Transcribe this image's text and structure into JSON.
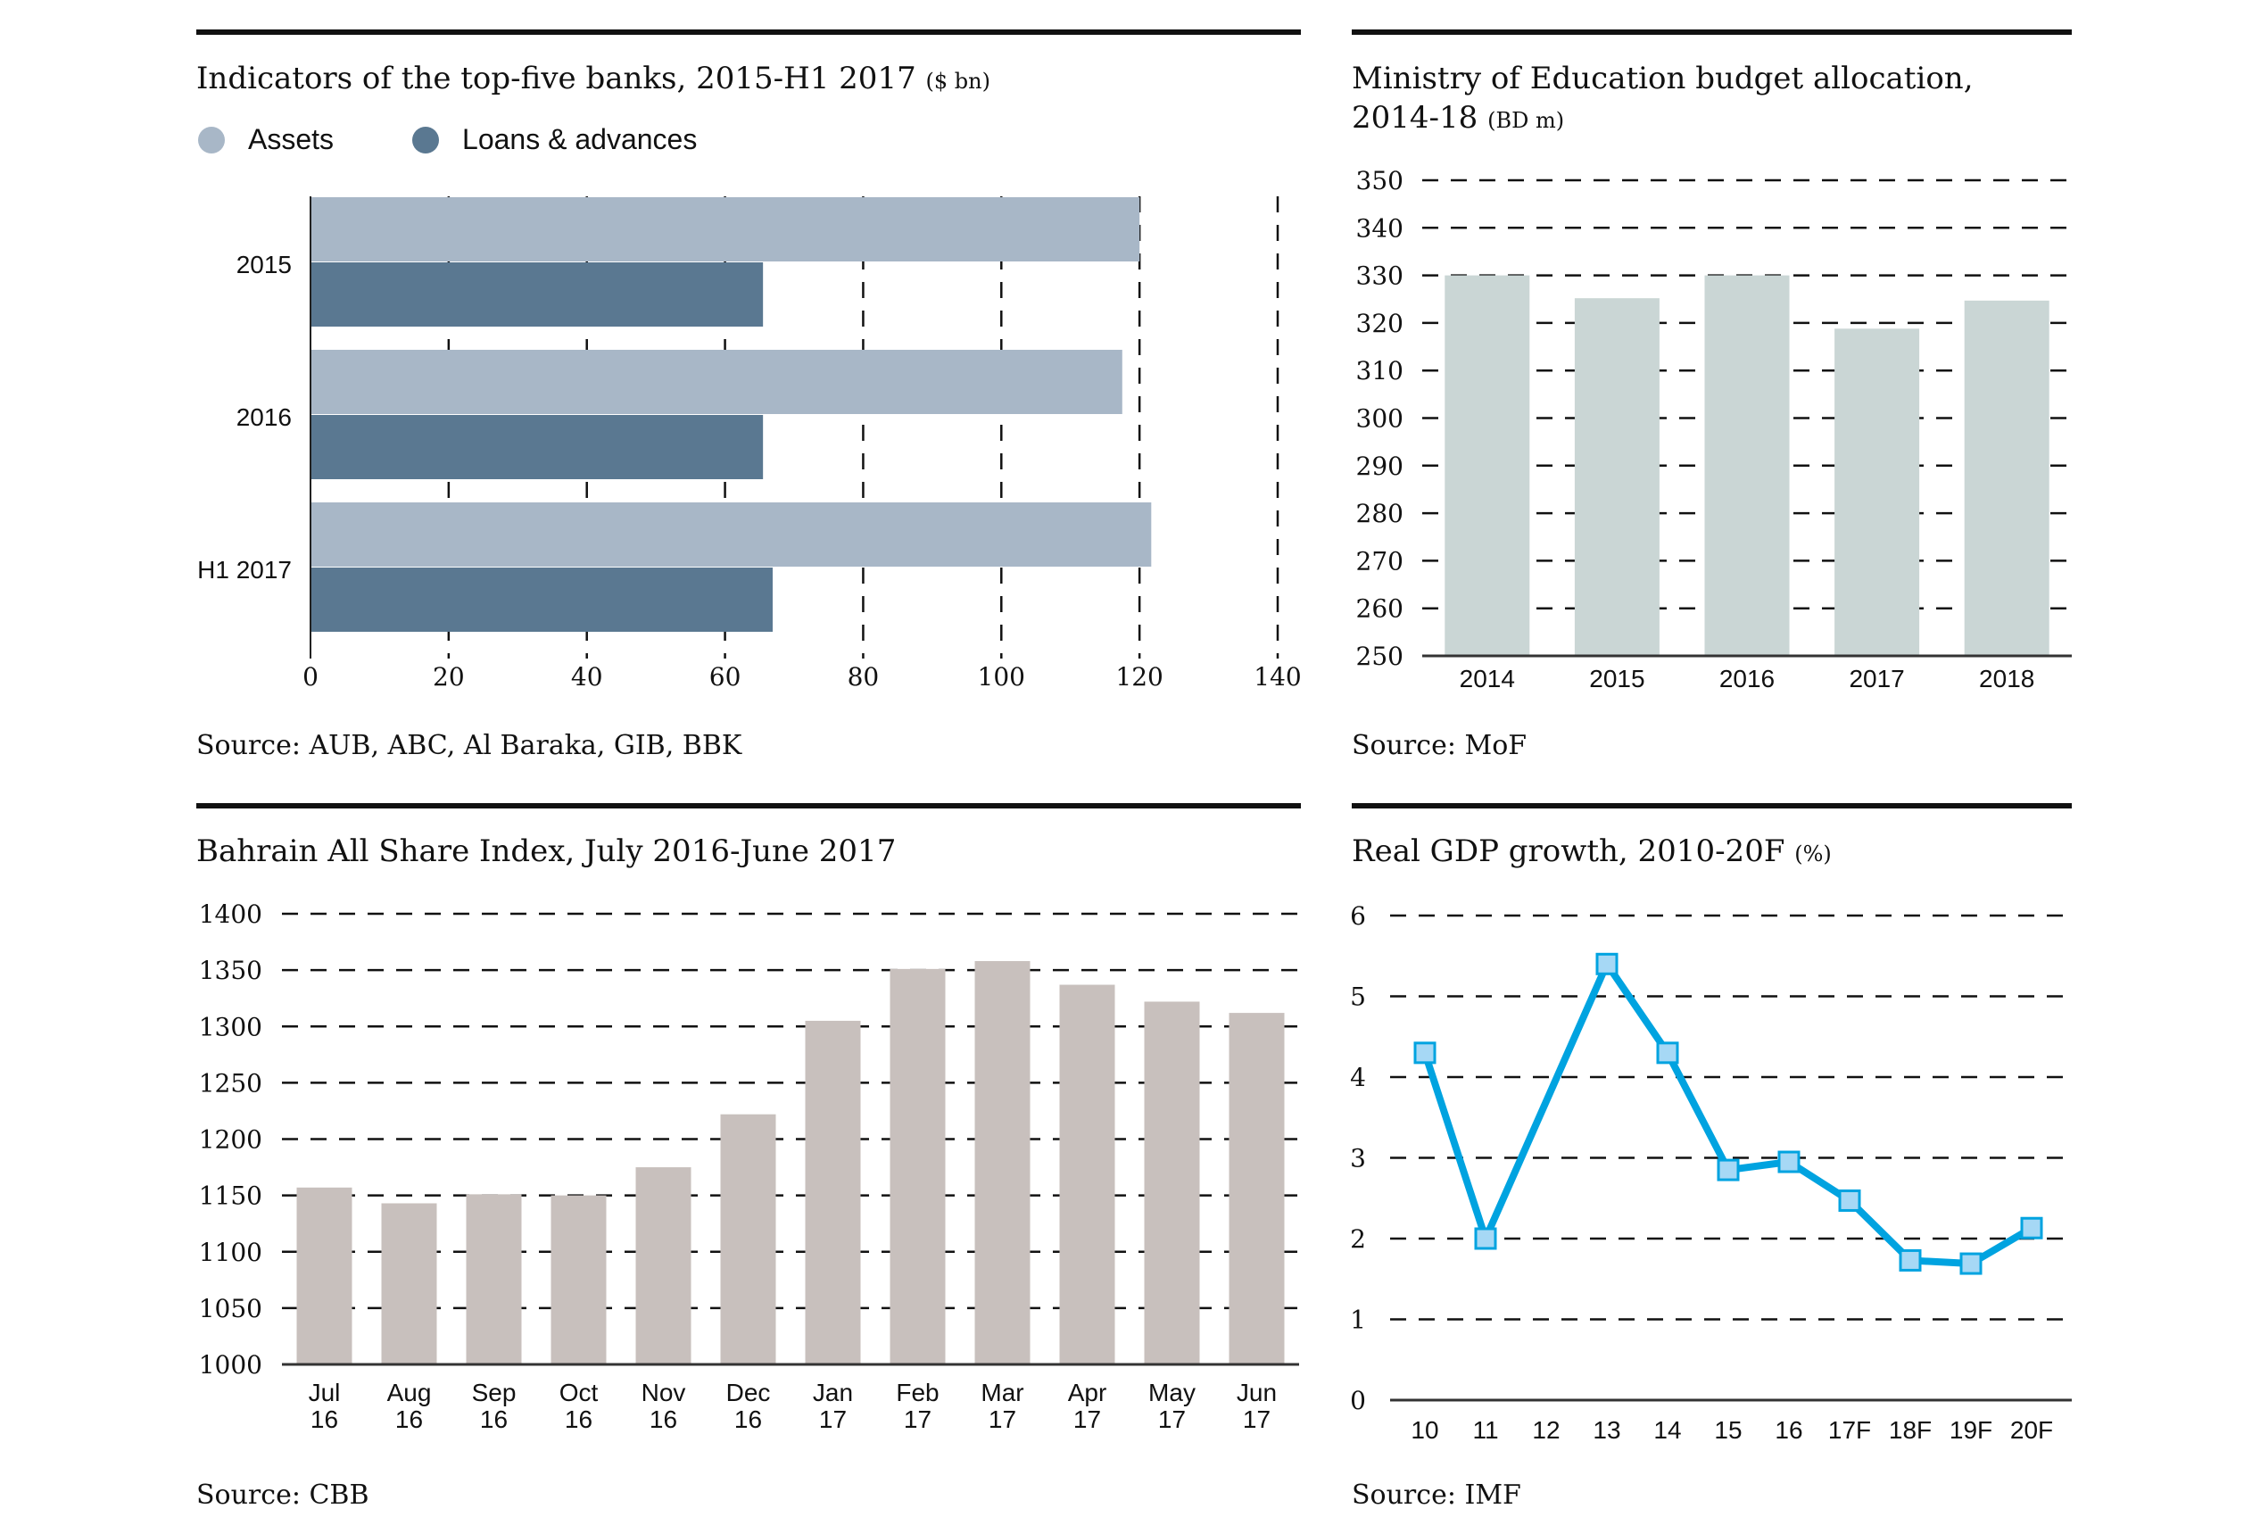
{
  "panels": {
    "banks": {
      "title": "Indicators of the top-five banks, 2015-H1 2017",
      "unit": "($ bn)",
      "source": "Source: AUB, ABC, Al Baraka, GIB, BBK",
      "legend": [
        {
          "label": "Assets",
          "color": "#A8B7C7"
        },
        {
          "label": "Loans & advances",
          "color": "#5A7891"
        }
      ]
    },
    "education": {
      "title_line1": "Ministry of Education budget allocation,",
      "title_line2": "2014-18",
      "unit": "(BD m)",
      "source": "Source: MoF"
    },
    "bahrain_index": {
      "title": "Bahrain All Share Index, July 2016-June 2017",
      "source": "Source: CBB"
    },
    "gdp": {
      "title": "Real GDP growth, 2010-20F",
      "unit": "(%)",
      "source": "Source: IMF"
    }
  },
  "chart_data": [
    {
      "id": "banks",
      "type": "bar",
      "orientation": "horizontal",
      "title": "Indicators of the top-five banks, 2015-H1 2017 ($ bn)",
      "categories": [
        "2015",
        "2016",
        "H1 2017"
      ],
      "series": [
        {
          "name": "Assets",
          "color": "#A8B7C7",
          "values": [
            120,
            117.5,
            121.7
          ]
        },
        {
          "name": "Loans & advances",
          "color": "#5A7891",
          "values": [
            65.5,
            65.5,
            66.9
          ]
        }
      ],
      "xlim": [
        0,
        140
      ],
      "xticks": [
        0,
        20,
        40,
        60,
        80,
        100,
        120,
        140
      ],
      "grid": true,
      "legend": "top-left"
    },
    {
      "id": "education",
      "type": "bar",
      "title": "Ministry of Education budget allocation, 2014-18 (BD m)",
      "categories": [
        "2014",
        "2015",
        "2016",
        "2017",
        "2018"
      ],
      "values": [
        330,
        325.2,
        330,
        318.8,
        324.7
      ],
      "color": "#CAD6D5",
      "ylim": [
        250,
        350
      ],
      "yticks": [
        250,
        260,
        270,
        280,
        290,
        300,
        310,
        320,
        330,
        340,
        350
      ],
      "grid": true
    },
    {
      "id": "bahrain_index",
      "type": "bar",
      "title": "Bahrain All Share Index, July 2016-June 2017",
      "categories": [
        [
          "Jul",
          "16"
        ],
        [
          "Aug",
          "16"
        ],
        [
          "Sep",
          "16"
        ],
        [
          "Oct",
          "16"
        ],
        [
          "Nov",
          "16"
        ],
        [
          "Dec",
          "16"
        ],
        [
          "Jan",
          "17"
        ],
        [
          "Feb",
          "17"
        ],
        [
          "Mar",
          "17"
        ],
        [
          "Apr",
          "17"
        ],
        [
          "May",
          "17"
        ],
        [
          "Jun",
          "17"
        ]
      ],
      "values": [
        1157,
        1143,
        1151,
        1150,
        1175,
        1222,
        1305,
        1351,
        1358,
        1337,
        1322,
        1312
      ],
      "color": "#C8C0BD",
      "ylim": [
        1000,
        1400
      ],
      "yticks": [
        1000,
        1050,
        1100,
        1150,
        1200,
        1250,
        1300,
        1350,
        1400
      ],
      "grid": true
    },
    {
      "id": "gdp",
      "type": "line",
      "title": "Real GDP growth, 2010-20F (%)",
      "categories": [
        "10",
        "11",
        "12",
        "13",
        "14",
        "15",
        "16",
        "17F",
        "18F",
        "19F",
        "20F"
      ],
      "values": [
        4.3,
        2.0,
        null,
        5.4,
        4.3,
        2.85,
        2.95,
        2.47,
        1.73,
        1.69,
        2.13
      ],
      "line_color": "#00A3E0",
      "marker_fill": "#A6D8F5",
      "ylim": [
        0,
        6
      ],
      "yticks": [
        0,
        1,
        2,
        3,
        4,
        5,
        6
      ],
      "grid": true
    }
  ]
}
